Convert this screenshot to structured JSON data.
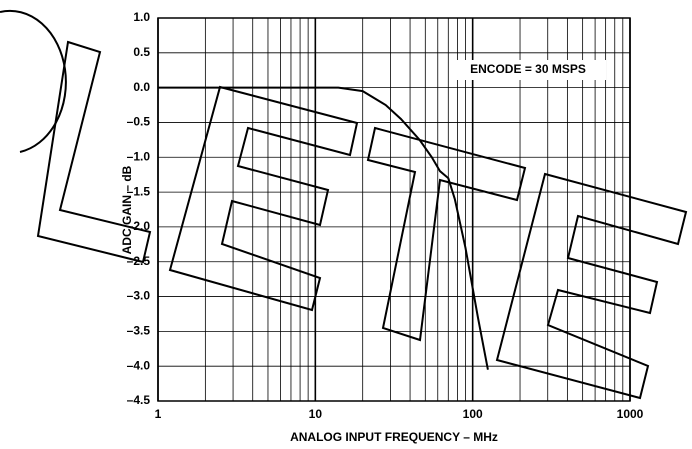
{
  "chart_data": {
    "type": "line",
    "x_label": "ANALOG INPUT FREQUENCY – MHz",
    "y_label": "ADC GAIN – dB",
    "annotation": "ENCODE = 30 MSPS",
    "log_x": true,
    "grid": true,
    "xlim": [
      1,
      1000
    ],
    "xticks": [
      1,
      10,
      100,
      1000
    ],
    "ylim": [
      -4.5,
      1.0
    ],
    "yticks": [
      {
        "value": 1.0,
        "label": "1.0"
      },
      {
        "value": 0.5,
        "label": "0.5"
      },
      {
        "value": 0.0,
        "label": "0.0"
      },
      {
        "value": -0.5,
        "label": "–0.5"
      },
      {
        "value": -1.0,
        "label": "–1.0"
      },
      {
        "value": -1.5,
        "label": "–1.5"
      },
      {
        "value": -2.0,
        "label": "–2.0"
      },
      {
        "value": -2.5,
        "label": "–2.5"
      },
      {
        "value": -3.0,
        "label": "–3.0"
      },
      {
        "value": -3.5,
        "label": "–3.5"
      },
      {
        "value": -4.0,
        "label": "–4.0"
      },
      {
        "value": -4.5,
        "label": "–4.5"
      }
    ],
    "x": [
      1,
      14,
      20,
      28,
      35,
      46,
      55,
      62,
      70,
      77,
      90,
      108,
      125
    ],
    "series": [
      {
        "color": "#000000",
        "values": [
          0,
          0,
          -0.05,
          -0.25,
          -0.45,
          -0.75,
          -1.0,
          -1.2,
          -1.3,
          -1.6,
          -2.3,
          -3.3,
          -4.05
        ]
      }
    ]
  }
}
